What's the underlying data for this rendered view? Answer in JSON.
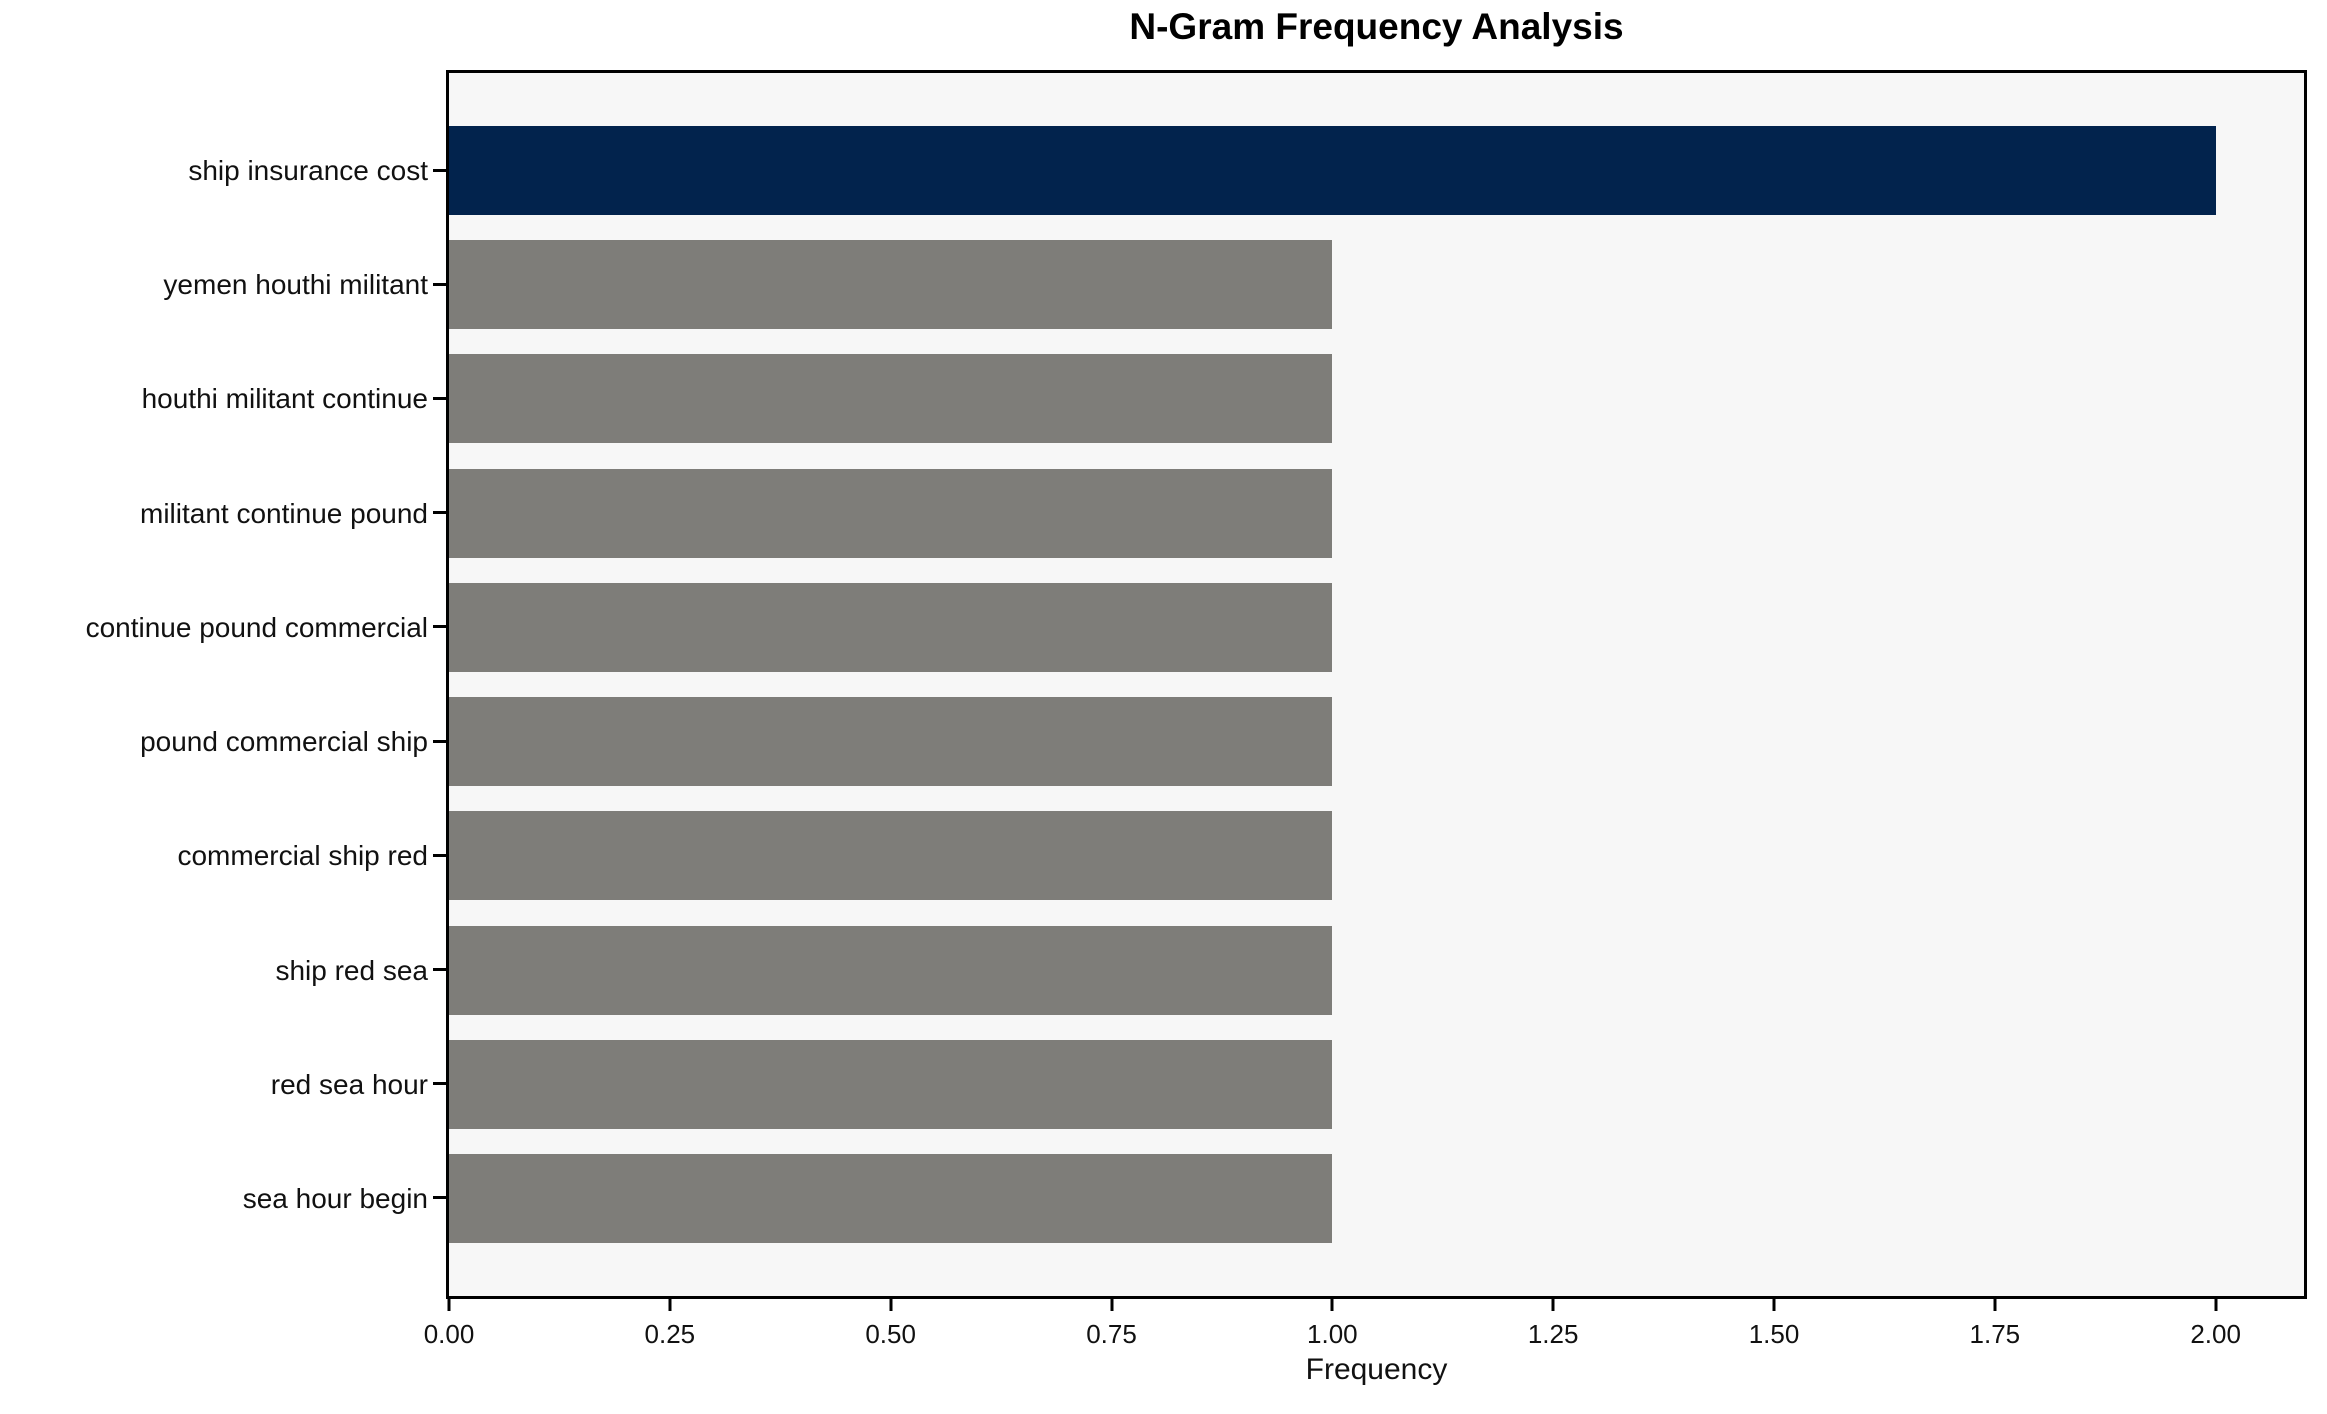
{
  "figure": {
    "background_color": "#ffffff",
    "plot_background_color": "#f7f7f7",
    "frame_color": "#000000",
    "text_color": "#111111"
  },
  "chart_data": {
    "type": "bar",
    "orientation": "horizontal",
    "title": "N-Gram Frequency Analysis",
    "xlabel": "Frequency",
    "ylabel": "",
    "categories": [
      "ship insurance cost",
      "yemen houthi militant",
      "houthi militant continue",
      "militant continue pound",
      "continue pound commercial",
      "pound commercial ship",
      "commercial ship red",
      "ship red sea",
      "red sea hour",
      "sea hour begin"
    ],
    "values": [
      2.0,
      1.0,
      1.0,
      1.0,
      1.0,
      1.0,
      1.0,
      1.0,
      1.0,
      1.0
    ],
    "highlight_index": 0,
    "highlight_color": "#02234d",
    "default_bar_color": "#7e7d79",
    "xlim": [
      0,
      2.1
    ],
    "x_ticks": [
      {
        "value": 0.0,
        "label": "0.00"
      },
      {
        "value": 0.25,
        "label": "0.25"
      },
      {
        "value": 0.5,
        "label": "0.50"
      },
      {
        "value": 0.75,
        "label": "0.75"
      },
      {
        "value": 1.0,
        "label": "1.00"
      },
      {
        "value": 1.25,
        "label": "1.25"
      },
      {
        "value": 1.5,
        "label": "1.50"
      },
      {
        "value": 1.75,
        "label": "1.75"
      },
      {
        "value": 2.0,
        "label": "2.00"
      }
    ],
    "grid": false,
    "legend": null
  }
}
